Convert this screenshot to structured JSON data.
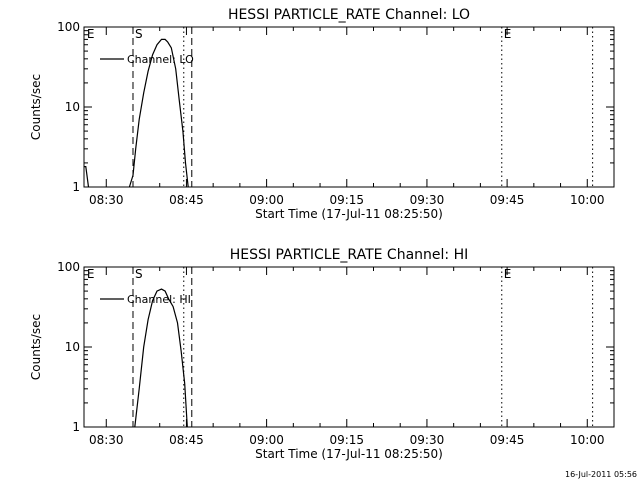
{
  "footer_timestamp": "16-Jul-2011 05:56",
  "chart_data": [
    {
      "type": "line",
      "title": "HESSI PARTICLE_RATE Channel: LO",
      "xlabel": "Start Time (17-Jul-11 08:25:50)",
      "ylabel": "Counts/sec",
      "y_scale": "log",
      "ylim": [
        1,
        100
      ],
      "y_tick_labels": [
        "1",
        "10",
        "100"
      ],
      "xlim": [
        "08:25:50",
        "10:05:00"
      ],
      "x_tick_labels": [
        "08:30",
        "08:45",
        "09:00",
        "09:15",
        "09:30",
        "09:45",
        "10:00"
      ],
      "legend": {
        "position": "top-left",
        "entries": [
          "Channel: LO"
        ]
      },
      "markers": [
        {
          "label": "E",
          "time": "08:26:00",
          "style": "none"
        },
        {
          "label": "S",
          "time": "08:35:00",
          "style": "dashed"
        },
        {
          "label": "",
          "time": "08:44:30",
          "style": "dotted"
        },
        {
          "label": "",
          "time": "08:46:00",
          "style": "dashed"
        },
        {
          "label": "E",
          "time": "09:44:00",
          "style": "dotted"
        },
        {
          "label": "",
          "time": "10:01:00",
          "style": "dotted"
        }
      ],
      "series": [
        {
          "name": "Channel: LO",
          "segments": [
            [
              [
                "08:25:52",
                1.8
              ],
              [
                "08:26:10",
                1.8
              ],
              [
                "08:26:40",
                1.0
              ]
            ],
            [
              [
                "08:34:20",
                1.0
              ],
              [
                "08:35:00",
                1.4
              ],
              [
                "08:35:30",
                3.0
              ],
              [
                "08:36:10",
                7.0
              ],
              [
                "08:37:00",
                15.0
              ],
              [
                "08:37:50",
                28.0
              ],
              [
                "08:38:40",
                45.0
              ],
              [
                "08:39:30",
                60.0
              ],
              [
                "08:40:20",
                70.0
              ],
              [
                "08:41:00",
                70.0
              ],
              [
                "08:41:30",
                65.0
              ],
              [
                "08:42:10",
                55.0
              ],
              [
                "08:43:00",
                30.0
              ],
              [
                "08:43:40",
                12.0
              ],
              [
                "08:44:20",
                5.0
              ],
              [
                "08:44:50",
                2.0
              ],
              [
                "08:45:20",
                1.0
              ]
            ]
          ]
        }
      ]
    },
    {
      "type": "line",
      "title": "HESSI PARTICLE_RATE Channel: HI",
      "xlabel": "Start Time (17-Jul-11 08:25:50)",
      "ylabel": "Counts/sec",
      "y_scale": "log",
      "ylim": [
        1,
        100
      ],
      "y_tick_labels": [
        "1",
        "10",
        "100"
      ],
      "xlim": [
        "08:25:50",
        "10:05:00"
      ],
      "x_tick_labels": [
        "08:30",
        "08:45",
        "09:00",
        "09:15",
        "09:30",
        "09:45",
        "10:00"
      ],
      "legend": {
        "position": "top-left",
        "entries": [
          "Channel: HI"
        ]
      },
      "markers": [
        {
          "label": "E",
          "time": "08:26:00",
          "style": "none"
        },
        {
          "label": "S",
          "time": "08:35:00",
          "style": "dashed"
        },
        {
          "label": "",
          "time": "08:44:30",
          "style": "dotted"
        },
        {
          "label": "",
          "time": "08:46:00",
          "style": "dashed"
        },
        {
          "label": "E",
          "time": "09:44:00",
          "style": "dotted"
        },
        {
          "label": "",
          "time": "10:01:00",
          "style": "dotted"
        }
      ],
      "series": [
        {
          "name": "Channel: HI",
          "segments": [
            [
              [
                "08:35:20",
                1.0
              ],
              [
                "08:36:10",
                3.0
              ],
              [
                "08:37:00",
                10.0
              ],
              [
                "08:37:50",
                22.0
              ],
              [
                "08:38:40",
                38.0
              ],
              [
                "08:39:30",
                50.0
              ],
              [
                "08:40:20",
                53.0
              ],
              [
                "08:41:00",
                50.0
              ],
              [
                "08:41:40",
                40.0
              ],
              [
                "08:42:30",
                32.0
              ],
              [
                "08:43:20",
                20.0
              ],
              [
                "08:44:00",
                9.0
              ],
              [
                "08:44:40",
                3.5
              ],
              [
                "08:45:10",
                1.0
              ]
            ]
          ]
        }
      ]
    }
  ]
}
